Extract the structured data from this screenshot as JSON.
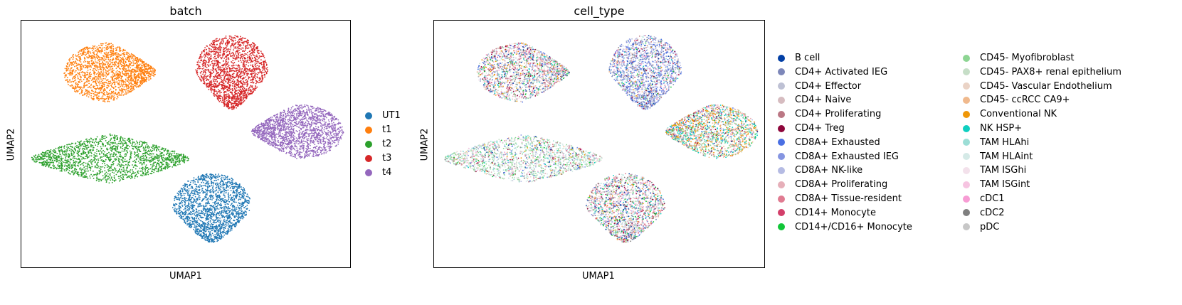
{
  "chart_data": [
    {
      "type": "scatter",
      "title": "batch",
      "xlabel": "UMAP1",
      "ylabel": "UMAP2",
      "grid": false,
      "ticks": false,
      "legend_position": "right",
      "series": [
        {
          "name": "UT1",
          "color": "#1f77b4",
          "clusters": [
            {
              "cx": 0.58,
              "cy": 0.24,
              "rx": 0.12,
              "ry": 0.14,
              "shape": "drop-down"
            }
          ]
        },
        {
          "name": "t1",
          "color": "#ff7f0e",
          "clusters": [
            {
              "cx": 0.27,
              "cy": 0.79,
              "rx": 0.14,
              "ry": 0.12,
              "shape": "drop-right"
            }
          ]
        },
        {
          "name": "t2",
          "color": "#2ca02c",
          "clusters": [
            {
              "cx": 0.27,
              "cy": 0.44,
              "rx": 0.24,
              "ry": 0.1,
              "shape": "elongated"
            }
          ]
        },
        {
          "name": "t3",
          "color": "#d62728",
          "clusters": [
            {
              "cx": 0.64,
              "cy": 0.79,
              "rx": 0.11,
              "ry": 0.15,
              "shape": "drop-down"
            }
          ]
        },
        {
          "name": "t4",
          "color": "#9467bd",
          "clusters": [
            {
              "cx": 0.84,
              "cy": 0.55,
              "rx": 0.14,
              "ry": 0.11,
              "shape": "drop-left"
            }
          ]
        }
      ]
    },
    {
      "type": "scatter",
      "title": "cell_type",
      "xlabel": "UMAP1",
      "ylabel": "UMAP2",
      "grid": false,
      "ticks": false,
      "legend_position": "right",
      "legend_columns": 2,
      "series": [
        {
          "name": "B cell",
          "color": "#023fa5"
        },
        {
          "name": "CD4+ Activated IEG",
          "color": "#7d87b9"
        },
        {
          "name": "CD4+ Effector",
          "color": "#bec1d4"
        },
        {
          "name": "CD4+ Naive",
          "color": "#d6bcc0"
        },
        {
          "name": "CD4+ Proliferating",
          "color": "#bb7784"
        },
        {
          "name": "CD4+ Treg",
          "color": "#8e063b"
        },
        {
          "name": "CD8A+ Exhausted",
          "color": "#4a6fe3"
        },
        {
          "name": "CD8A+ Exhausted IEG",
          "color": "#8595e1"
        },
        {
          "name": "CD8A+ NK-like",
          "color": "#b5bbe3"
        },
        {
          "name": "CD8A+ Proliferating",
          "color": "#e6afb9"
        },
        {
          "name": "CD8A+ Tissue-resident",
          "color": "#e07b91"
        },
        {
          "name": "CD14+ Monocyte",
          "color": "#d33f6a"
        },
        {
          "name": "CD14+/CD16+ Monocyte",
          "color": "#11c638"
        },
        {
          "name": "CD45- Myofibroblast",
          "color": "#8dd593"
        },
        {
          "name": "CD45- PAX8+ renal epithelium",
          "color": "#c6dec7"
        },
        {
          "name": "CD45- Vascular Endothelium",
          "color": "#ead3c6"
        },
        {
          "name": "CD45- ccRCC CA9+",
          "color": "#f0b98d"
        },
        {
          "name": "Conventional NK",
          "color": "#ef9708"
        },
        {
          "name": "NK HSP+",
          "color": "#0fcfc0"
        },
        {
          "name": "TAM HLAhi",
          "color": "#9cded6"
        },
        {
          "name": "TAM HLAint",
          "color": "#d5eae7"
        },
        {
          "name": "TAM ISGhi",
          "color": "#f3e1eb"
        },
        {
          "name": "TAM ISGint",
          "color": "#f6c4e1"
        },
        {
          "name": "cDC1",
          "color": "#f79cd4"
        },
        {
          "name": "cDC2",
          "color": "#7f7f7f"
        },
        {
          "name": "pDC",
          "color": "#c7c7c7"
        }
      ]
    }
  ]
}
